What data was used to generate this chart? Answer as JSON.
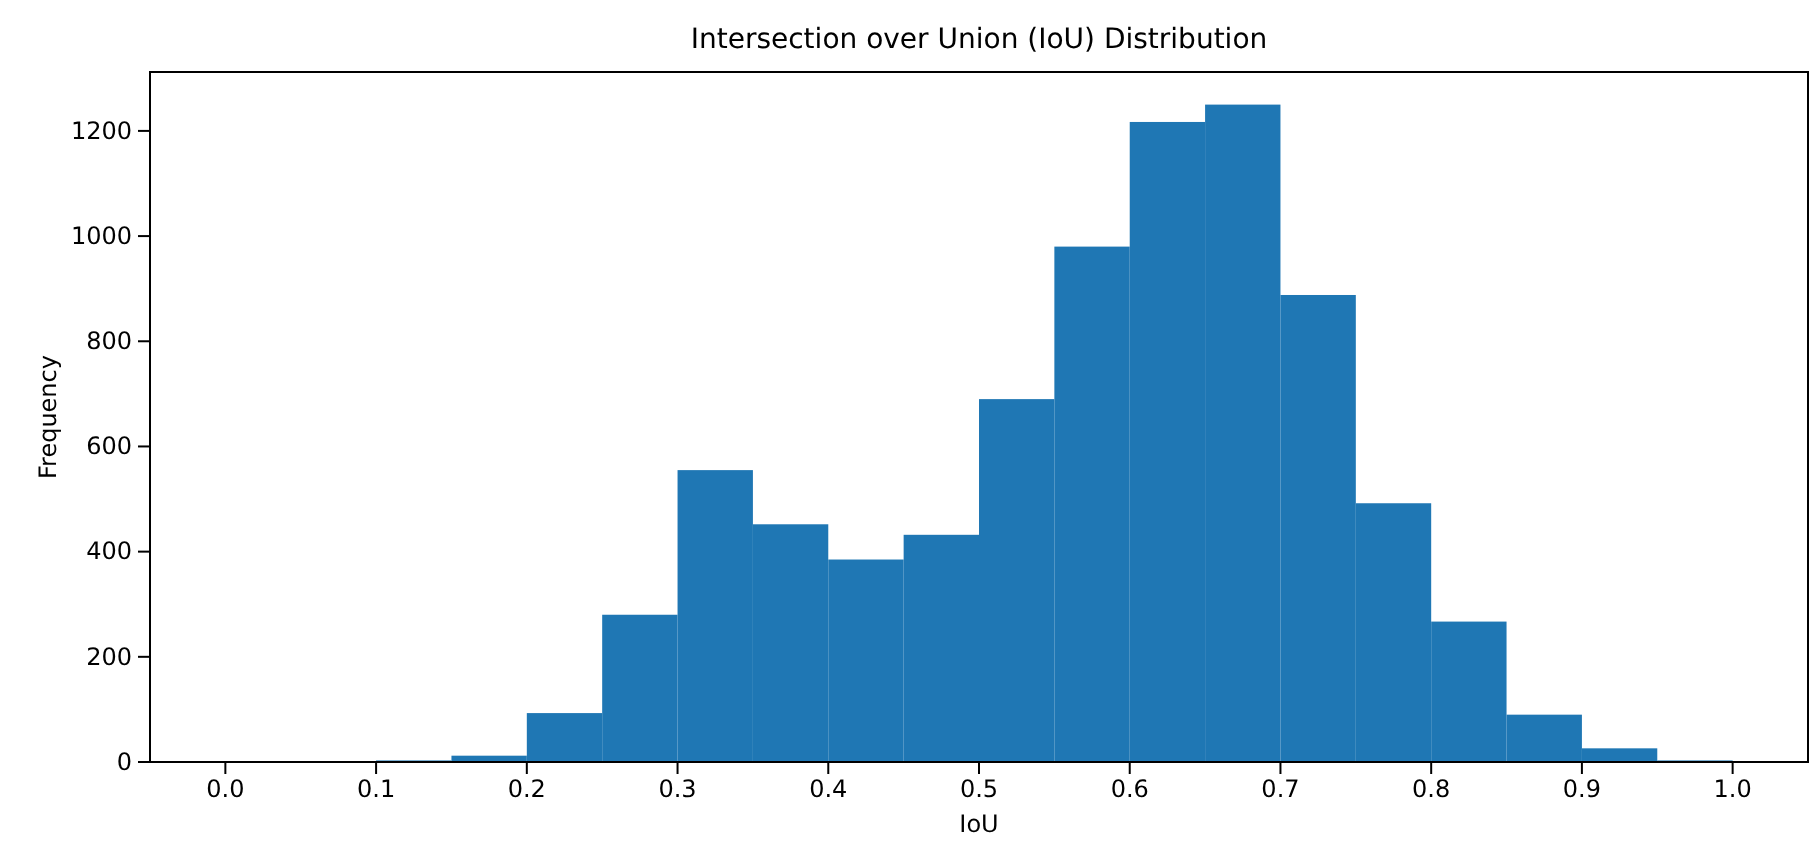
{
  "chart_data": {
    "type": "histogram",
    "title": "Intersection over Union (IoU) Distribution",
    "xlabel": "IoU",
    "ylabel": "Frequency",
    "bins": [
      0,
      0.05,
      0.1,
      0.15,
      0.2,
      0.25,
      0.3,
      0.35,
      0.4,
      0.45,
      0.5,
      0.55,
      0.6,
      0.65,
      0.7,
      0.75,
      0.8,
      0.85,
      0.9,
      0.95,
      1.0
    ],
    "values": [
      0,
      0,
      3,
      12,
      93,
      280,
      555,
      452,
      385,
      432,
      690,
      980,
      1217,
      1250,
      888,
      492,
      267,
      90,
      26,
      3
    ],
    "color": "#1f77b4",
    "xlim": [
      -0.05,
      1.05
    ],
    "xticks": [
      {
        "value": 0,
        "label": "0.0"
      },
      {
        "value": 0.1,
        "label": "0.1"
      },
      {
        "value": 0.2,
        "label": "0.2"
      },
      {
        "value": 0.3,
        "label": "0.3"
      },
      {
        "value": 0.4,
        "label": "0.4"
      },
      {
        "value": 0.5,
        "label": "0.5"
      },
      {
        "value": 0.6,
        "label": "0.6"
      },
      {
        "value": 0.7,
        "label": "0.7"
      },
      {
        "value": 0.8,
        "label": "0.8"
      },
      {
        "value": 0.9,
        "label": "0.9"
      },
      {
        "value": 1.0,
        "label": "1.0"
      }
    ],
    "ylim": [
      0,
      1312
    ],
    "yticks": [
      0,
      200,
      400,
      600,
      800,
      1000,
      1200
    ]
  }
}
